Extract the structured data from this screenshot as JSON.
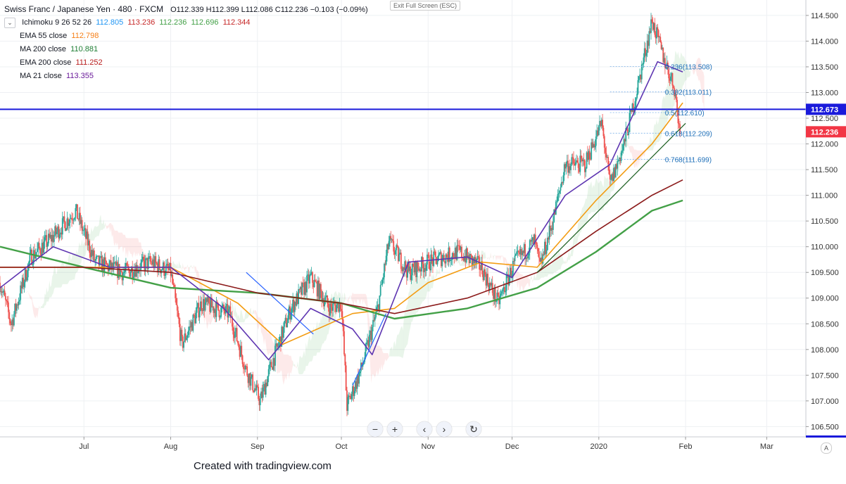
{
  "legend": {
    "symbol": "Swiss Franc / Japanese Yen · 480 · FXCM",
    "ohlc": "O112.339  H112.399  L112.086  C112.236  −0.103 (−0.09%)",
    "ichimoku_label": "Ichimoku 9 26 52 26",
    "ichimoku_values": [
      "112.805",
      "113.236",
      "112.236",
      "112.696",
      "112.344"
    ],
    "ema55_label": "EMA 55 close",
    "ema55_value": "112.798",
    "ma200_label": "MA 200 close",
    "ma200_value": "110.881",
    "ema200_label": "EMA 200 close",
    "ema200_value": "111.252",
    "ma21_label": "MA 21 close",
    "ma21_value": "113.355"
  },
  "exit_fullscreen": "Exit Full Screen (ESC)",
  "credit": "Created with tradingview.com",
  "auto_scale": "A",
  "nav_buttons": {
    "zoom_out": "−",
    "zoom_in": "+",
    "back": "‹",
    "forward": "›",
    "reset": "↻"
  },
  "colors": {
    "up_candle": "#26a69a",
    "down_candle": "#ef5350",
    "ema55": "#f39c12",
    "ma200": "#43a047",
    "ema200": "#8b1a1a",
    "ma21": "#5e35b1",
    "hline": "#1a1adb",
    "current_price": "#f23645"
  },
  "chart_data": {
    "type": "candlestick",
    "title": "Swiss Franc / Japanese Yen · 480 · FXCM",
    "ylim": [
      106.3,
      114.8
    ],
    "y_ticks": [
      "114.500",
      "114.000",
      "113.500",
      "113.000",
      "112.500",
      "112.000",
      "111.500",
      "111.000",
      "110.500",
      "110.000",
      "109.500",
      "109.000",
      "108.500",
      "108.000",
      "107.500",
      "107.000",
      "106.500"
    ],
    "x_ticks": [
      "Jul",
      "Aug",
      "Sep",
      "Oct",
      "Nov",
      "Dec",
      "2020",
      "Feb",
      "Mar"
    ],
    "x_range": [
      "2019-06-01",
      "2020-03-15"
    ],
    "key_points": [
      {
        "x": "2019-06-01",
        "y": 109.3
      },
      {
        "x": "2019-06-05",
        "y": 108.5
      },
      {
        "x": "2019-06-12",
        "y": 109.8
      },
      {
        "x": "2019-06-20",
        "y": 110.2
      },
      {
        "x": "2019-06-28",
        "y": 110.7
      },
      {
        "x": "2019-07-05",
        "y": 109.7
      },
      {
        "x": "2019-07-15",
        "y": 109.5
      },
      {
        "x": "2019-07-25",
        "y": 109.7
      },
      {
        "x": "2019-08-01",
        "y": 109.5
      },
      {
        "x": "2019-08-05",
        "y": 108.1
      },
      {
        "x": "2019-08-12",
        "y": 108.9
      },
      {
        "x": "2019-08-22",
        "y": 108.7
      },
      {
        "x": "2019-08-28",
        "y": 107.6
      },
      {
        "x": "2019-09-02",
        "y": 107.0
      },
      {
        "x": "2019-09-06",
        "y": 107.7
      },
      {
        "x": "2019-09-13",
        "y": 108.8
      },
      {
        "x": "2019-09-20",
        "y": 109.4
      },
      {
        "x": "2019-09-27",
        "y": 108.8
      },
      {
        "x": "2019-10-01",
        "y": 108.9
      },
      {
        "x": "2019-10-03",
        "y": 106.9
      },
      {
        "x": "2019-10-08",
        "y": 107.6
      },
      {
        "x": "2019-10-14",
        "y": 108.8
      },
      {
        "x": "2019-10-18",
        "y": 110.1
      },
      {
        "x": "2019-10-25",
        "y": 109.5
      },
      {
        "x": "2019-11-01",
        "y": 109.7
      },
      {
        "x": "2019-11-12",
        "y": 109.9
      },
      {
        "x": "2019-11-20",
        "y": 109.6
      },
      {
        "x": "2019-11-26",
        "y": 108.9
      },
      {
        "x": "2019-12-02",
        "y": 109.7
      },
      {
        "x": "2019-12-09",
        "y": 110.1
      },
      {
        "x": "2019-12-11",
        "y": 109.6
      },
      {
        "x": "2019-12-16",
        "y": 110.6
      },
      {
        "x": "2019-12-20",
        "y": 111.6
      },
      {
        "x": "2019-12-27",
        "y": 111.6
      },
      {
        "x": "2020-01-02",
        "y": 112.4
      },
      {
        "x": "2020-01-05",
        "y": 111.2
      },
      {
        "x": "2020-01-10",
        "y": 112.0
      },
      {
        "x": "2020-01-14",
        "y": 112.9
      },
      {
        "x": "2020-01-20",
        "y": 114.4
      },
      {
        "x": "2020-01-24",
        "y": 113.7
      },
      {
        "x": "2020-01-28",
        "y": 113.1
      },
      {
        "x": "2020-01-30",
        "y": 112.2
      }
    ],
    "current_price": "112.236",
    "horizontal_line": "112.673",
    "fib_levels": [
      {
        "label": "0.236(113.508)",
        "value": 113.508
      },
      {
        "label": "0.382(113.011)",
        "value": 113.011
      },
      {
        "label": "0.5(112.610)",
        "value": 112.61
      },
      {
        "label": "0.618(112.209)",
        "value": 112.209
      },
      {
        "label": "0.768(111.699)",
        "value": 111.699
      }
    ],
    "series": [
      {
        "name": "EMA 55 close",
        "points": [
          [
            "2019-06-01",
            109.6
          ],
          [
            "2019-07-01",
            109.6
          ],
          [
            "2019-08-01",
            109.6
          ],
          [
            "2019-08-25",
            108.9
          ],
          [
            "2019-09-10",
            108.1
          ],
          [
            "2019-10-05",
            108.7
          ],
          [
            "2019-10-20",
            108.8
          ],
          [
            "2019-11-01",
            109.3
          ],
          [
            "2019-11-20",
            109.7
          ],
          [
            "2019-12-10",
            109.6
          ],
          [
            "2019-12-31",
            110.9
          ],
          [
            "2020-01-20",
            112.0
          ],
          [
            "2020-01-31",
            112.8
          ]
        ]
      },
      {
        "name": "MA 200 close",
        "points": [
          [
            "2019-06-01",
            110.0
          ],
          [
            "2019-07-01",
            109.6
          ],
          [
            "2019-08-01",
            109.2
          ],
          [
            "2019-09-01",
            109.1
          ],
          [
            "2019-10-01",
            108.9
          ],
          [
            "2019-10-20",
            108.6
          ],
          [
            "2019-11-15",
            108.8
          ],
          [
            "2019-12-10",
            109.2
          ],
          [
            "2019-12-31",
            109.9
          ],
          [
            "2020-01-20",
            110.7
          ],
          [
            "2020-01-31",
            110.9
          ]
        ]
      },
      {
        "name": "EMA 200 close",
        "points": [
          [
            "2019-06-01",
            109.6
          ],
          [
            "2019-07-01",
            109.6
          ],
          [
            "2019-08-01",
            109.5
          ],
          [
            "2019-09-01",
            109.1
          ],
          [
            "2019-10-01",
            108.9
          ],
          [
            "2019-10-20",
            108.7
          ],
          [
            "2019-11-15",
            109.0
          ],
          [
            "2019-12-10",
            109.5
          ],
          [
            "2019-12-31",
            110.3
          ],
          [
            "2020-01-20",
            111.0
          ],
          [
            "2020-01-31",
            111.3
          ]
        ]
      },
      {
        "name": "MA 21 close",
        "points": [
          [
            "2019-06-01",
            109.2
          ],
          [
            "2019-06-20",
            110.0
          ],
          [
            "2019-07-10",
            109.6
          ],
          [
            "2019-08-01",
            109.6
          ],
          [
            "2019-08-20",
            108.8
          ],
          [
            "2019-09-05",
            107.8
          ],
          [
            "2019-09-20",
            108.8
          ],
          [
            "2019-10-05",
            108.4
          ],
          [
            "2019-10-12",
            107.9
          ],
          [
            "2019-10-25",
            109.7
          ],
          [
            "2019-11-15",
            109.8
          ],
          [
            "2019-12-01",
            109.4
          ],
          [
            "2019-12-20",
            111.0
          ],
          [
            "2020-01-05",
            111.6
          ],
          [
            "2020-01-22",
            113.6
          ],
          [
            "2020-01-31",
            113.4
          ]
        ]
      }
    ],
    "trendlines": [
      {
        "from": [
          "2019-08-28",
          109.5
        ],
        "to": [
          "2019-09-21",
          108.3
        ]
      },
      {
        "from": [
          "2019-10-05",
          107.3
        ],
        "to": [
          "2019-10-17",
          108.7
        ]
      },
      {
        "from": [
          "2019-12-10",
          109.5
        ],
        "to": [
          "2020-02-01",
          112.4
        ]
      }
    ]
  }
}
